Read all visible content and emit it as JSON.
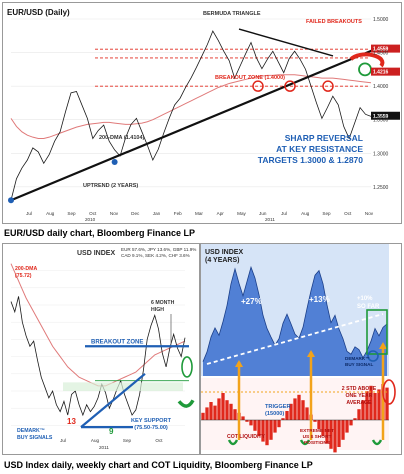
{
  "captions": {
    "top": "EUR/USD daily chart, Bloomberg Finance LP",
    "bottom": "USD Index daily, weekly chart and COT Liquidity, Bloomberg Finance LP"
  },
  "colors": {
    "price": "#1a1a1a",
    "ma": "#e07a7a",
    "annotation_red": "#e0281c",
    "annotation_blue": "#1f5fb4",
    "trendline_black": "#111111",
    "area_blue": "#3a6fcf",
    "area_bg": "#d6e4f7",
    "cot_red": "#e0281c",
    "orange": "#f2a31b",
    "green": "#1f9a3a"
  },
  "chart_data": [
    {
      "type": "line",
      "title": "EUR/USD (Daily)",
      "x_ticks": [
        "Jul",
        "Aug",
        "Sep",
        "Oct",
        "Nov",
        "Dec",
        "Jan",
        "Feb",
        "Mar",
        "Apr",
        "May",
        "Jun",
        "Jul",
        "Aug",
        "Sep",
        "Oct",
        "Nov"
      ],
      "year_labels": [
        "2010",
        "2011"
      ],
      "y_ticks": [
        "1.5000",
        "1.4500",
        "1.4000",
        "1.3500",
        "1.3000",
        "1.2500"
      ],
      "ylim": [
        1.22,
        1.5
      ],
      "series": [
        {
          "name": "EUR/USD",
          "values": [
            1.23,
            1.262,
            1.278,
            1.29,
            1.308,
            1.302,
            1.285,
            1.298,
            1.318,
            1.332,
            1.362,
            1.39,
            1.392,
            1.372,
            1.352,
            1.322,
            1.334,
            1.342,
            1.318,
            1.305,
            1.296,
            1.323,
            1.343,
            1.352,
            1.332,
            1.312,
            1.29,
            1.306,
            1.33,
            1.352,
            1.372,
            1.382,
            1.398,
            1.412,
            1.428,
            1.445,
            1.462,
            1.482,
            1.468,
            1.452,
            1.438,
            1.412,
            1.43,
            1.448,
            1.465,
            1.442,
            1.426,
            1.44,
            1.452,
            1.436,
            1.42,
            1.441,
            1.452,
            1.44,
            1.425,
            1.4,
            1.375,
            1.352,
            1.368,
            1.385,
            1.372,
            1.34,
            1.322,
            1.345,
            1.368,
            1.358,
            1.355
          ]
        },
        {
          "name": "200-DMA",
          "values": [
            1.352,
            1.34,
            1.332,
            1.327,
            1.324,
            1.322,
            1.322,
            1.324,
            1.327,
            1.33,
            1.333,
            1.336,
            1.339,
            1.341,
            1.343,
            1.344,
            1.345,
            1.346,
            1.346,
            1.345,
            1.344,
            1.343,
            1.343,
            1.344,
            1.345,
            1.347,
            1.35,
            1.354,
            1.358,
            1.362,
            1.366,
            1.37,
            1.374,
            1.378,
            1.382,
            1.386,
            1.39,
            1.394,
            1.398,
            1.401,
            1.404,
            1.406,
            1.408,
            1.41,
            1.412,
            1.414,
            1.415,
            1.416,
            1.416,
            1.417,
            1.417,
            1.417,
            1.417,
            1.416,
            1.415,
            1.414,
            1.413,
            1.412,
            1.412,
            1.412,
            1.411,
            1.41,
            1.409,
            1.408,
            1.407,
            1.406,
            1.405
          ]
        }
      ],
      "price_labels": [
        "1.4559",
        "1.4216",
        "1.3559"
      ],
      "annotations": {
        "bermuda": "BERMUDA TRIANGLE",
        "failed": "FAILED BREAKOUTS",
        "breakout_zone": "BREAKOUT ZONE (1.4000)",
        "dma": "200-DMA (1.4104)",
        "uptrend": "UPTREND (2 YEARS)",
        "reversal": [
          "SHARP REVERSAL",
          "AT KEY RESISTANCE",
          "TARGETS 1.3000 & 1.2870"
        ]
      }
    },
    {
      "type": "line",
      "title": "USD INDEX",
      "weights": [
        "EUR 57.6%, JPY 13.6%, GBP 11.9%",
        "CAD 9.1%, SEK 4.2%, CHF 3.6%"
      ],
      "x_ticks": [
        "Jul",
        "Aug",
        "Sep",
        "Oct"
      ],
      "year_label": "2011",
      "ylim": [
        72.5,
        82.5
      ],
      "series": [
        {
          "name": "USD Index",
          "values": [
            80.2,
            79.6,
            80.5,
            79.0,
            78.2,
            77.6,
            77.9,
            76.8,
            75.8,
            75.2,
            74.6,
            75.0,
            74.2,
            73.8,
            74.4,
            73.6,
            74.8,
            75.0,
            74.2,
            73.6,
            74.2,
            73.8,
            74.1,
            74.6,
            75.4,
            74.9,
            74.0,
            74.5,
            75.1,
            75.6,
            74.8,
            74.2,
            73.6,
            73.9,
            74.8,
            76.2,
            78.0,
            78.8,
            79.4,
            78.6,
            77.2,
            76.4,
            77.5,
            78.3,
            77.5,
            77.0,
            78.1
          ]
        },
        {
          "name": "200-DMA",
          "values": [
            82.4,
            81.9,
            81.4,
            80.9,
            80.4,
            80.0,
            79.6,
            79.2,
            78.8,
            78.4,
            78.0,
            77.6,
            77.3,
            77.0,
            76.7,
            76.4,
            76.2,
            76.0,
            75.8,
            75.7,
            75.6,
            75.5,
            75.4,
            75.3,
            75.3,
            75.3,
            75.4,
            75.5,
            75.6,
            75.7,
            75.8,
            75.9,
            76.0,
            76.1,
            76.3,
            76.5,
            76.7,
            76.9,
            77.1,
            77.2,
            77.3,
            77.4,
            77.5,
            77.6,
            77.7,
            77.8,
            77.9
          ]
        }
      ],
      "annotations": {
        "dma": [
          "200-DMA",
          "(75.72)"
        ],
        "high": [
          "6 MONTH",
          "HIGH"
        ],
        "breakout": "BREAKOUT ZONE",
        "support": [
          "KEY SUPPORT",
          "(75.50-75.00)"
        ],
        "demark": [
          "DEMARK™",
          "BUY SIGNALS"
        ],
        "count13": "13",
        "count9": "9"
      }
    },
    {
      "type": "area",
      "title": [
        "USD INDEX",
        "(4 YEARS)"
      ],
      "ylim": [
        70,
        92
      ],
      "series": [
        {
          "name": "USD Index",
          "values": [
            72.5,
            74.2,
            76.8,
            78.4,
            77.1,
            79.5,
            82.3,
            86.1,
            88.7,
            86.2,
            84.0,
            86.5,
            89.0,
            87.1,
            84.2,
            80.6,
            78.3,
            76.8,
            75.4,
            76.5,
            79.2,
            80.8,
            79.1,
            77.3,
            76.6,
            78.5,
            81.8,
            84.9,
            87.6,
            88.4,
            86.1,
            82.4,
            79.3,
            80.6,
            78.2,
            76.5,
            74.3,
            73.8,
            75.1,
            74.6,
            73.2,
            74.4,
            76.1,
            78.3,
            77.0,
            78.5,
            79.1
          ]
        },
        {
          "name": "COT Liquidity",
          "values": [
            0.2,
            0.35,
            0.5,
            0.4,
            0.6,
            0.75,
            0.55,
            0.45,
            0.3,
            0.2,
            0.1,
            -0.05,
            -0.15,
            -0.3,
            -0.45,
            -0.6,
            -0.7,
            -0.55,
            -0.35,
            -0.2,
            0.05,
            0.25,
            0.45,
            0.6,
            0.7,
            0.55,
            0.35,
            0.15,
            -0.05,
            -0.25,
            -0.45,
            -0.65,
            -0.8,
            -0.9,
            -0.75,
            -0.55,
            -0.35,
            -0.15,
            0.05,
            0.3,
            0.55,
            0.8,
            0.95,
            0.75,
            0.85,
            1.0,
            0.9
          ]
        }
      ],
      "annotations": {
        "p27": "+27%",
        "p13": "+13%",
        "p10": [
          "+10%",
          "SO FAR"
        ],
        "demark": [
          "DEMARK™",
          "BUY SIGNAL"
        ],
        "std": [
          "2 STD ABOVE",
          "ONE YEAR",
          "AVERAGE"
        ],
        "trigger": [
          "TRIGGER",
          "(15000)"
        ],
        "cot": "COT LIQUIDITY",
        "extreme": [
          "EXTREME NET",
          "US $ SHORT",
          "POSITIONS"
        ]
      }
    }
  ]
}
